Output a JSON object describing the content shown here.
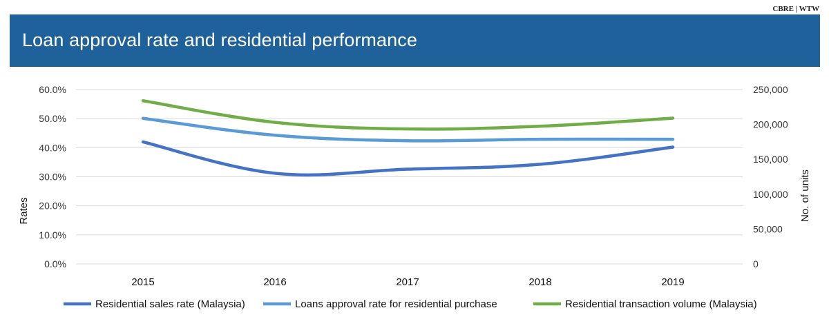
{
  "header": {
    "source": "CBRE | WTW",
    "title": "Loan approval rate and residential performance"
  },
  "colors": {
    "banner": "#1f619b",
    "sales_rate": "#4472c4",
    "loan_rate": "#5b9bd5",
    "transaction_volume": "#70ad47",
    "gridline": "#d9d9d9"
  },
  "chart_data": {
    "type": "line",
    "x": [
      "2015",
      "2016",
      "2017",
      "2018",
      "2019"
    ],
    "ylabel": "Rates",
    "y2label": "No. of units",
    "ylim": [
      0,
      60
    ],
    "yticks": [
      "0.0%",
      "10.0%",
      "20.0%",
      "30.0%",
      "40.0%",
      "50.0%",
      "60.0%"
    ],
    "y2lim": [
      0,
      250000
    ],
    "y2ticks": [
      "0",
      "50,000",
      "100,000",
      "150,000",
      "200,000",
      "250,000"
    ],
    "grid": true,
    "legend_position": "bottom",
    "series": [
      {
        "name": "Residential sales rate (Malaysia)",
        "axis": "left",
        "color": "#4472c4",
        "values": [
          42.0,
          31.2,
          32.6,
          34.3,
          40.2
        ]
      },
      {
        "name": "Loans approval rate for residential purchase",
        "axis": "left",
        "color": "#5b9bd5",
        "values": [
          50.1,
          44.3,
          42.4,
          42.9,
          42.9
        ]
      },
      {
        "name": "Residential transaction volume (Malaysia)",
        "axis": "right",
        "color": "#70ad47",
        "values": [
          234000,
          203000,
          193500,
          197500,
          209000
        ]
      }
    ]
  }
}
